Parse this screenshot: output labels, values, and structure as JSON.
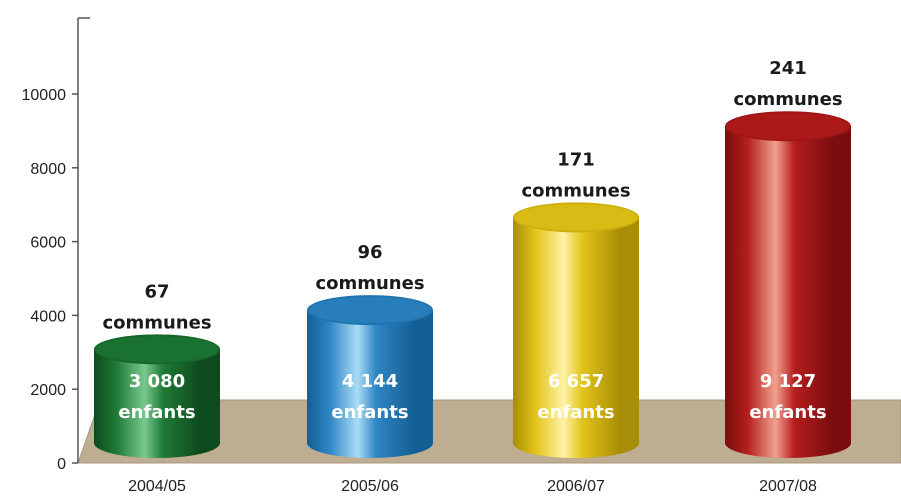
{
  "chart_data": {
    "type": "bar",
    "title": "",
    "xlabel": "",
    "ylabel": "",
    "categories": [
      "2004/05",
      "2005/06",
      "2006/07",
      "2007/08"
    ],
    "values": [
      3080,
      4144,
      6657,
      9127
    ],
    "value_labels": [
      {
        "number": "3 080",
        "unit": "enfants"
      },
      {
        "number": "4 144",
        "unit": "enfants"
      },
      {
        "number": "6 657",
        "unit": "enfants"
      },
      {
        "number": "9 127",
        "unit": "enfants"
      }
    ],
    "top_labels": [
      {
        "count": "67",
        "unit": "communes"
      },
      {
        "count": "96",
        "unit": "communes"
      },
      {
        "count": "171",
        "unit": "communes"
      },
      {
        "count": "241",
        "unit": "communes"
      }
    ],
    "yticks": [
      0,
      2000,
      4000,
      6000,
      8000,
      10000
    ],
    "ylim": [
      0,
      12000
    ],
    "grid": false,
    "colors": {
      "bars": [
        {
          "base": "#1f7a36",
          "light": "#79c98f",
          "dark": "#0d4a1d",
          "top": "#15682a"
        },
        {
          "base": "#2e86c4",
          "light": "#a9dcf6",
          "dark": "#145f94",
          "top": "#1f74b0"
        },
        {
          "base": "#e2c41a",
          "light": "#fff3a6",
          "dark": "#a88d06",
          "top": "#cdb010"
        },
        {
          "base": "#b51e1e",
          "light": "#f1a08d",
          "dark": "#7a0d0d",
          "top": "#a01616"
        }
      ],
      "floor": "#bfad92",
      "floor_edge": "#a8967c",
      "axis": "#555555"
    }
  }
}
